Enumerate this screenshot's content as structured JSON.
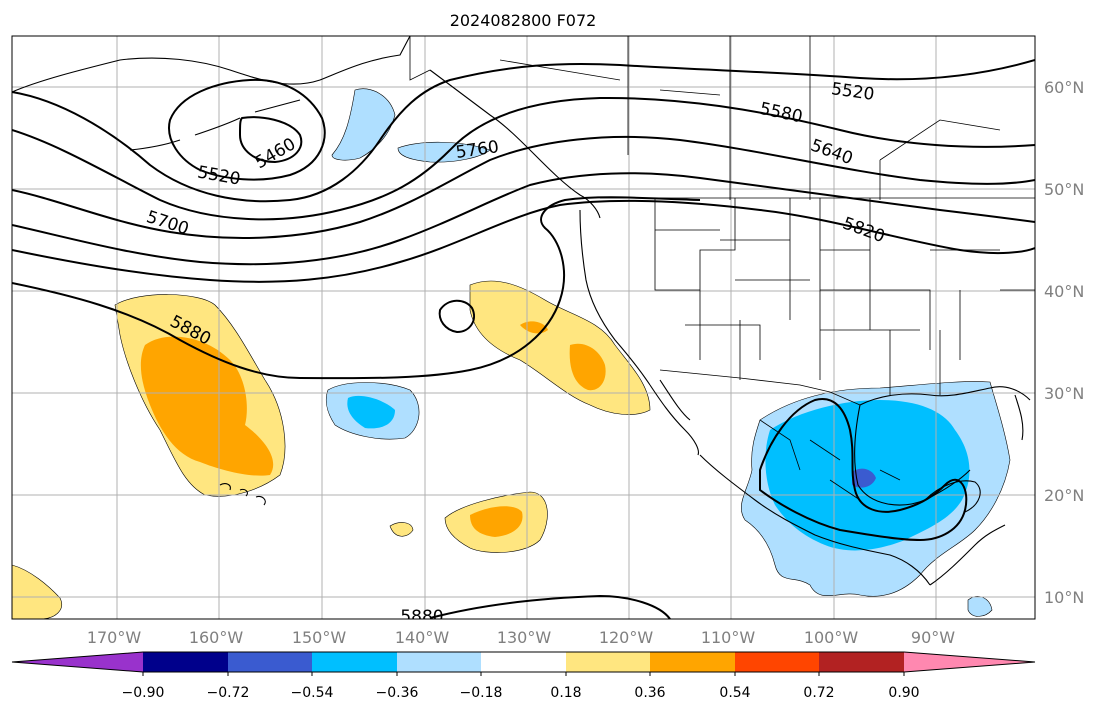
{
  "title": "2024082800 F072",
  "lat_labels": [
    "60°N",
    "50°N",
    "40°N",
    "30°N",
    "20°N",
    "10°N"
  ],
  "lon_labels": [
    "170°W",
    "160°W",
    "150°W",
    "140°W",
    "130°W",
    "120°W",
    "110°W",
    "100°W",
    "90°W"
  ],
  "contour_labels": [
    "5520",
    "5460",
    "5700",
    "5880",
    "5760",
    "5580",
    "5520",
    "5640",
    "5820",
    "5880"
  ],
  "colorbar": {
    "ticks": [
      "−0.90",
      "−0.72",
      "−0.54",
      "−0.36",
      "−0.18",
      "0.18",
      "0.36",
      "0.54",
      "0.72",
      "0.90"
    ],
    "colors": [
      "#9932cc",
      "#00008b",
      "#3a5bd0",
      "#00bfff",
      "#afdfff",
      "#ffffff",
      "#ffe680",
      "#ffa500",
      "#ff4500",
      "#b22222",
      "#ff88b0"
    ]
  }
}
